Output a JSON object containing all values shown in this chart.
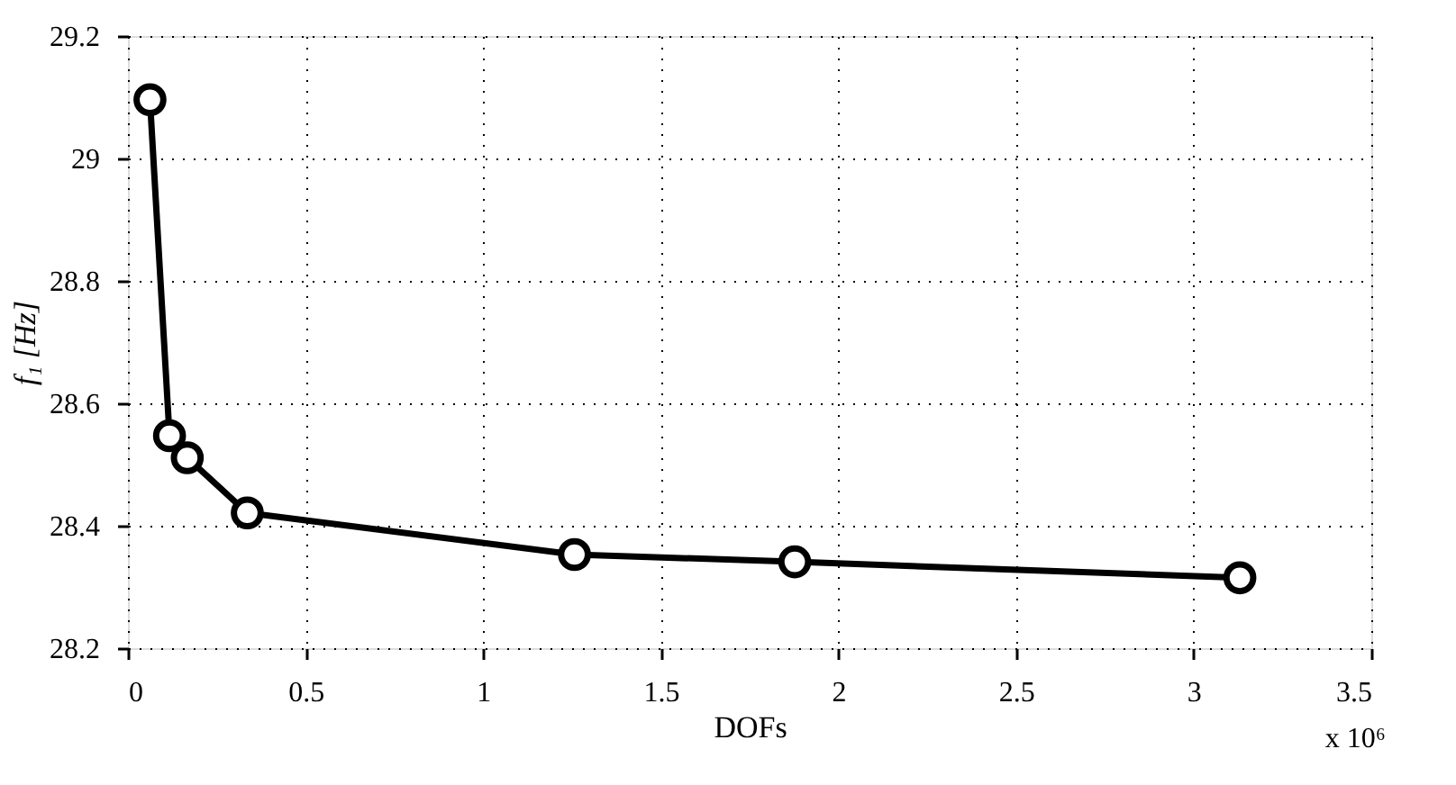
{
  "chart_data": {
    "type": "line",
    "xlabel": "DOFs",
    "ylabel": "f₁ [Hz]",
    "annotations": [
      "x 10⁶"
    ],
    "x": [
      0.062,
      0.117,
      0.167,
      0.336,
      1.257,
      1.877,
      3.13
    ],
    "series": [
      {
        "color": "#000000",
        "values": [
          29.096,
          28.547,
          28.511,
          28.421,
          28.353,
          28.341,
          28.315
        ]
      }
    ],
    "xlim": [
      0,
      3.5
    ],
    "xticks": [
      0,
      0.5,
      1,
      1.5,
      2,
      2.5,
      3,
      3.5
    ],
    "ylim": [
      28.2,
      29.2
    ],
    "yticks": [
      28.2,
      28.4,
      28.6,
      28.8,
      29,
      29.2
    ],
    "grid": true,
    "marker": "circle",
    "line_style": "solid"
  }
}
